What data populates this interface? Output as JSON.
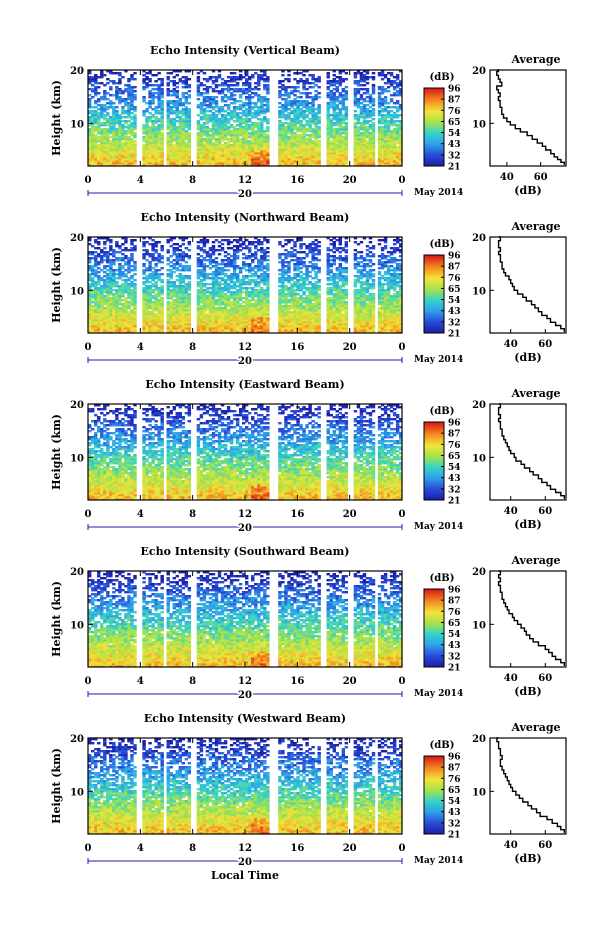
{
  "xlabel": "Local Time",
  "chart_data": [
    {
      "type": "heatmap",
      "title": "Echo Intensity (Vertical Beam)",
      "ylabel": "Height (km)",
      "yticks": [
        "20",
        "10"
      ],
      "ylim": [
        2,
        20
      ],
      "xticks": [
        "0",
        "4",
        "8",
        "12",
        "16",
        "20",
        "0"
      ],
      "xlim": [
        0,
        24
      ],
      "date_day": "20",
      "date_label": "May 2014",
      "colorbar": {
        "unit": "(dB)",
        "ticks": [
          "96",
          "87",
          "76",
          "65",
          "54",
          "43",
          "32",
          "21"
        ]
      },
      "gaps_hours": [
        [
          3.7,
          4.2
        ],
        [
          5.7,
          6.0
        ],
        [
          7.9,
          8.3
        ],
        [
          13.9,
          14.6
        ],
        [
          17.8,
          18.2
        ],
        [
          19.8,
          20.2
        ],
        [
          21.9,
          22.2
        ]
      ],
      "average": {
        "title": "Average",
        "xlabel": "(dB)",
        "xticks": [
          "40",
          "60"
        ],
        "xlim": [
          30,
          75
        ],
        "yticks": [
          "20",
          "10"
        ],
        "ylim": [
          2,
          20
        ],
        "profile": [
          [
            2.2,
            74
          ],
          [
            2.7,
            72
          ],
          [
            3.2,
            70
          ],
          [
            3.7,
            68
          ],
          [
            4.3,
            66
          ],
          [
            5.0,
            63
          ],
          [
            5.7,
            61
          ],
          [
            6.3,
            58
          ],
          [
            7.0,
            55
          ],
          [
            7.7,
            52
          ],
          [
            8.4,
            48
          ],
          [
            9.0,
            45
          ],
          [
            9.7,
            42
          ],
          [
            10.3,
            40
          ],
          [
            11.0,
            38
          ],
          [
            11.7,
            37
          ],
          [
            12.3,
            37
          ],
          [
            13.0,
            36
          ],
          [
            13.7,
            36
          ],
          [
            14.3,
            35
          ],
          [
            15.0,
            36
          ],
          [
            15.7,
            35
          ],
          [
            16.3,
            34
          ],
          [
            17.0,
            37
          ],
          [
            17.7,
            36
          ],
          [
            18.3,
            35
          ],
          [
            19.0,
            34
          ],
          [
            19.7,
            35
          ],
          [
            20.0,
            34
          ]
        ]
      }
    },
    {
      "type": "heatmap",
      "title": "Echo Intensity (Northward Beam)",
      "ylabel": "Height (km)",
      "yticks": [
        "20",
        "10"
      ],
      "ylim": [
        2,
        20
      ],
      "xticks": [
        "0",
        "4",
        "8",
        "12",
        "16",
        "20",
        "0"
      ],
      "xlim": [
        0,
        24
      ],
      "date_day": "20",
      "date_label": "May 2014",
      "colorbar": {
        "unit": "(dB)",
        "ticks": [
          "96",
          "87",
          "76",
          "65",
          "54",
          "43",
          "32",
          "21"
        ]
      },
      "gaps_hours": [
        [
          3.7,
          4.2
        ],
        [
          5.7,
          6.0
        ],
        [
          7.9,
          8.3
        ],
        [
          13.9,
          14.6
        ],
        [
          17.8,
          18.2
        ],
        [
          19.8,
          20.2
        ],
        [
          21.9,
          22.2
        ]
      ],
      "average": {
        "title": "Average",
        "xlabel": "(dB)",
        "xticks": [
          "40",
          "60"
        ],
        "xlim": [
          28,
          72
        ],
        "yticks": [
          "20",
          "10"
        ],
        "ylim": [
          2,
          20
        ],
        "profile": [
          [
            2.2,
            71
          ],
          [
            2.8,
            69
          ],
          [
            3.4,
            66
          ],
          [
            4.0,
            63
          ],
          [
            4.7,
            61
          ],
          [
            5.3,
            58
          ],
          [
            6.0,
            56
          ],
          [
            6.7,
            54
          ],
          [
            7.3,
            52
          ],
          [
            8.0,
            49
          ],
          [
            8.7,
            47
          ],
          [
            9.3,
            44
          ],
          [
            10.0,
            42
          ],
          [
            10.7,
            41
          ],
          [
            11.3,
            40
          ],
          [
            12.0,
            39
          ],
          [
            12.7,
            37
          ],
          [
            13.3,
            36
          ],
          [
            14.0,
            35
          ],
          [
            14.7,
            35
          ],
          [
            15.3,
            34
          ],
          [
            16.0,
            34
          ],
          [
            16.7,
            33
          ],
          [
            17.3,
            34
          ],
          [
            18.0,
            33
          ],
          [
            18.7,
            33
          ],
          [
            19.3,
            34
          ],
          [
            20.0,
            33
          ]
        ]
      }
    },
    {
      "type": "heatmap",
      "title": "Echo Intensity (Eastward Beam)",
      "ylabel": "Height (km)",
      "yticks": [
        "20",
        "10"
      ],
      "ylim": [
        2,
        20
      ],
      "xticks": [
        "0",
        "4",
        "8",
        "12",
        "16",
        "20",
        "0"
      ],
      "xlim": [
        0,
        24
      ],
      "date_day": "20",
      "date_label": "May 2014",
      "colorbar": {
        "unit": "(dB)",
        "ticks": [
          "96",
          "87",
          "76",
          "65",
          "54",
          "43",
          "32",
          "21"
        ]
      },
      "gaps_hours": [
        [
          3.7,
          4.2
        ],
        [
          5.7,
          6.0
        ],
        [
          7.9,
          8.3
        ],
        [
          13.9,
          14.6
        ],
        [
          17.8,
          18.2
        ],
        [
          19.8,
          20.2
        ],
        [
          21.9,
          22.2
        ]
      ],
      "average": {
        "title": "Average",
        "xlabel": "(dB)",
        "xticks": [
          "40",
          "60"
        ],
        "xlim": [
          28,
          72
        ],
        "yticks": [
          "20",
          "10"
        ],
        "ylim": [
          2,
          20
        ],
        "profile": [
          [
            2.2,
            71
          ],
          [
            2.8,
            69
          ],
          [
            3.4,
            66
          ],
          [
            4.0,
            63
          ],
          [
            4.7,
            61
          ],
          [
            5.3,
            58
          ],
          [
            6.0,
            56
          ],
          [
            6.7,
            53
          ],
          [
            7.3,
            51
          ],
          [
            8.0,
            48
          ],
          [
            8.7,
            46
          ],
          [
            9.3,
            43
          ],
          [
            10.0,
            42
          ],
          [
            10.7,
            40
          ],
          [
            11.3,
            39
          ],
          [
            12.0,
            38
          ],
          [
            12.7,
            37
          ],
          [
            13.3,
            36
          ],
          [
            14.0,
            35
          ],
          [
            14.7,
            35
          ],
          [
            15.3,
            34
          ],
          [
            16.0,
            34
          ],
          [
            16.7,
            33
          ],
          [
            17.3,
            34
          ],
          [
            18.0,
            33
          ],
          [
            18.7,
            33
          ],
          [
            19.3,
            34
          ],
          [
            20.0,
            33
          ]
        ]
      }
    },
    {
      "type": "heatmap",
      "title": "Echo Intensity (Southward Beam)",
      "ylabel": "Height (km)",
      "yticks": [
        "20",
        "10"
      ],
      "ylim": [
        2,
        20
      ],
      "xticks": [
        "0",
        "4",
        "8",
        "12",
        "16",
        "20",
        "0"
      ],
      "xlim": [
        0,
        24
      ],
      "date_day": "20",
      "date_label": "May 2014",
      "colorbar": {
        "unit": "(dB)",
        "ticks": [
          "96",
          "87",
          "76",
          "65",
          "54",
          "43",
          "32",
          "21"
        ]
      },
      "gaps_hours": [
        [
          3.7,
          4.2
        ],
        [
          5.7,
          6.0
        ],
        [
          7.9,
          8.3
        ],
        [
          13.9,
          14.6
        ],
        [
          17.8,
          18.2
        ],
        [
          19.8,
          20.2
        ],
        [
          21.9,
          22.2
        ]
      ],
      "average": {
        "title": "Average",
        "xlabel": "(dB)",
        "xticks": [
          "40",
          "60"
        ],
        "xlim": [
          28,
          72
        ],
        "yticks": [
          "20",
          "10"
        ],
        "ylim": [
          2,
          20
        ],
        "profile": [
          [
            2.2,
            71
          ],
          [
            2.8,
            69
          ],
          [
            3.4,
            66
          ],
          [
            4.0,
            64
          ],
          [
            4.7,
            62
          ],
          [
            5.3,
            60
          ],
          [
            6.0,
            56
          ],
          [
            6.7,
            53
          ],
          [
            7.3,
            51
          ],
          [
            8.0,
            49
          ],
          [
            8.7,
            48
          ],
          [
            9.3,
            46
          ],
          [
            10.0,
            44
          ],
          [
            10.7,
            42
          ],
          [
            11.3,
            41
          ],
          [
            12.0,
            39
          ],
          [
            12.7,
            38
          ],
          [
            13.3,
            37
          ],
          [
            14.0,
            36
          ],
          [
            14.7,
            35
          ],
          [
            15.3,
            35
          ],
          [
            16.0,
            34
          ],
          [
            16.7,
            34
          ],
          [
            17.3,
            33
          ],
          [
            18.0,
            34
          ],
          [
            18.7,
            33
          ],
          [
            19.3,
            34
          ],
          [
            20.0,
            33
          ]
        ]
      }
    },
    {
      "type": "heatmap",
      "title": "Echo Intensity (Westward Beam)",
      "ylabel": "Height (km)",
      "yticks": [
        "20",
        "10"
      ],
      "ylim": [
        2,
        20
      ],
      "xticks": [
        "0",
        "4",
        "8",
        "12",
        "16",
        "20",
        "0"
      ],
      "xlim": [
        0,
        24
      ],
      "date_day": "20",
      "date_label": "May 2014",
      "colorbar": {
        "unit": "(dB)",
        "ticks": [
          "96",
          "87",
          "76",
          "65",
          "54",
          "43",
          "32",
          "21"
        ]
      },
      "gaps_hours": [
        [
          3.7,
          4.2
        ],
        [
          5.7,
          6.0
        ],
        [
          7.9,
          8.3
        ],
        [
          13.9,
          14.6
        ],
        [
          17.8,
          18.2
        ],
        [
          19.8,
          20.2
        ],
        [
          21.9,
          22.2
        ]
      ],
      "average": {
        "title": "Average",
        "xlabel": "(dB)",
        "xticks": [
          "40",
          "60"
        ],
        "xlim": [
          28,
          72
        ],
        "yticks": [
          "20",
          "10"
        ],
        "ylim": [
          2,
          20
        ],
        "profile": [
          [
            2.2,
            71
          ],
          [
            2.8,
            69
          ],
          [
            3.4,
            67
          ],
          [
            4.0,
            64
          ],
          [
            4.7,
            61
          ],
          [
            5.3,
            57
          ],
          [
            6.0,
            55
          ],
          [
            6.7,
            52
          ],
          [
            7.3,
            50
          ],
          [
            8.0,
            47
          ],
          [
            8.7,
            45
          ],
          [
            9.3,
            43
          ],
          [
            10.0,
            41
          ],
          [
            10.7,
            40
          ],
          [
            11.3,
            39
          ],
          [
            12.0,
            38
          ],
          [
            12.7,
            37
          ],
          [
            13.3,
            36
          ],
          [
            14.0,
            35
          ],
          [
            14.7,
            34
          ],
          [
            15.3,
            34
          ],
          [
            16.0,
            35
          ],
          [
            16.7,
            34
          ],
          [
            17.3,
            34
          ],
          [
            18.0,
            33
          ],
          [
            18.7,
            33
          ],
          [
            19.3,
            32
          ],
          [
            20.0,
            33
          ]
        ]
      }
    }
  ]
}
